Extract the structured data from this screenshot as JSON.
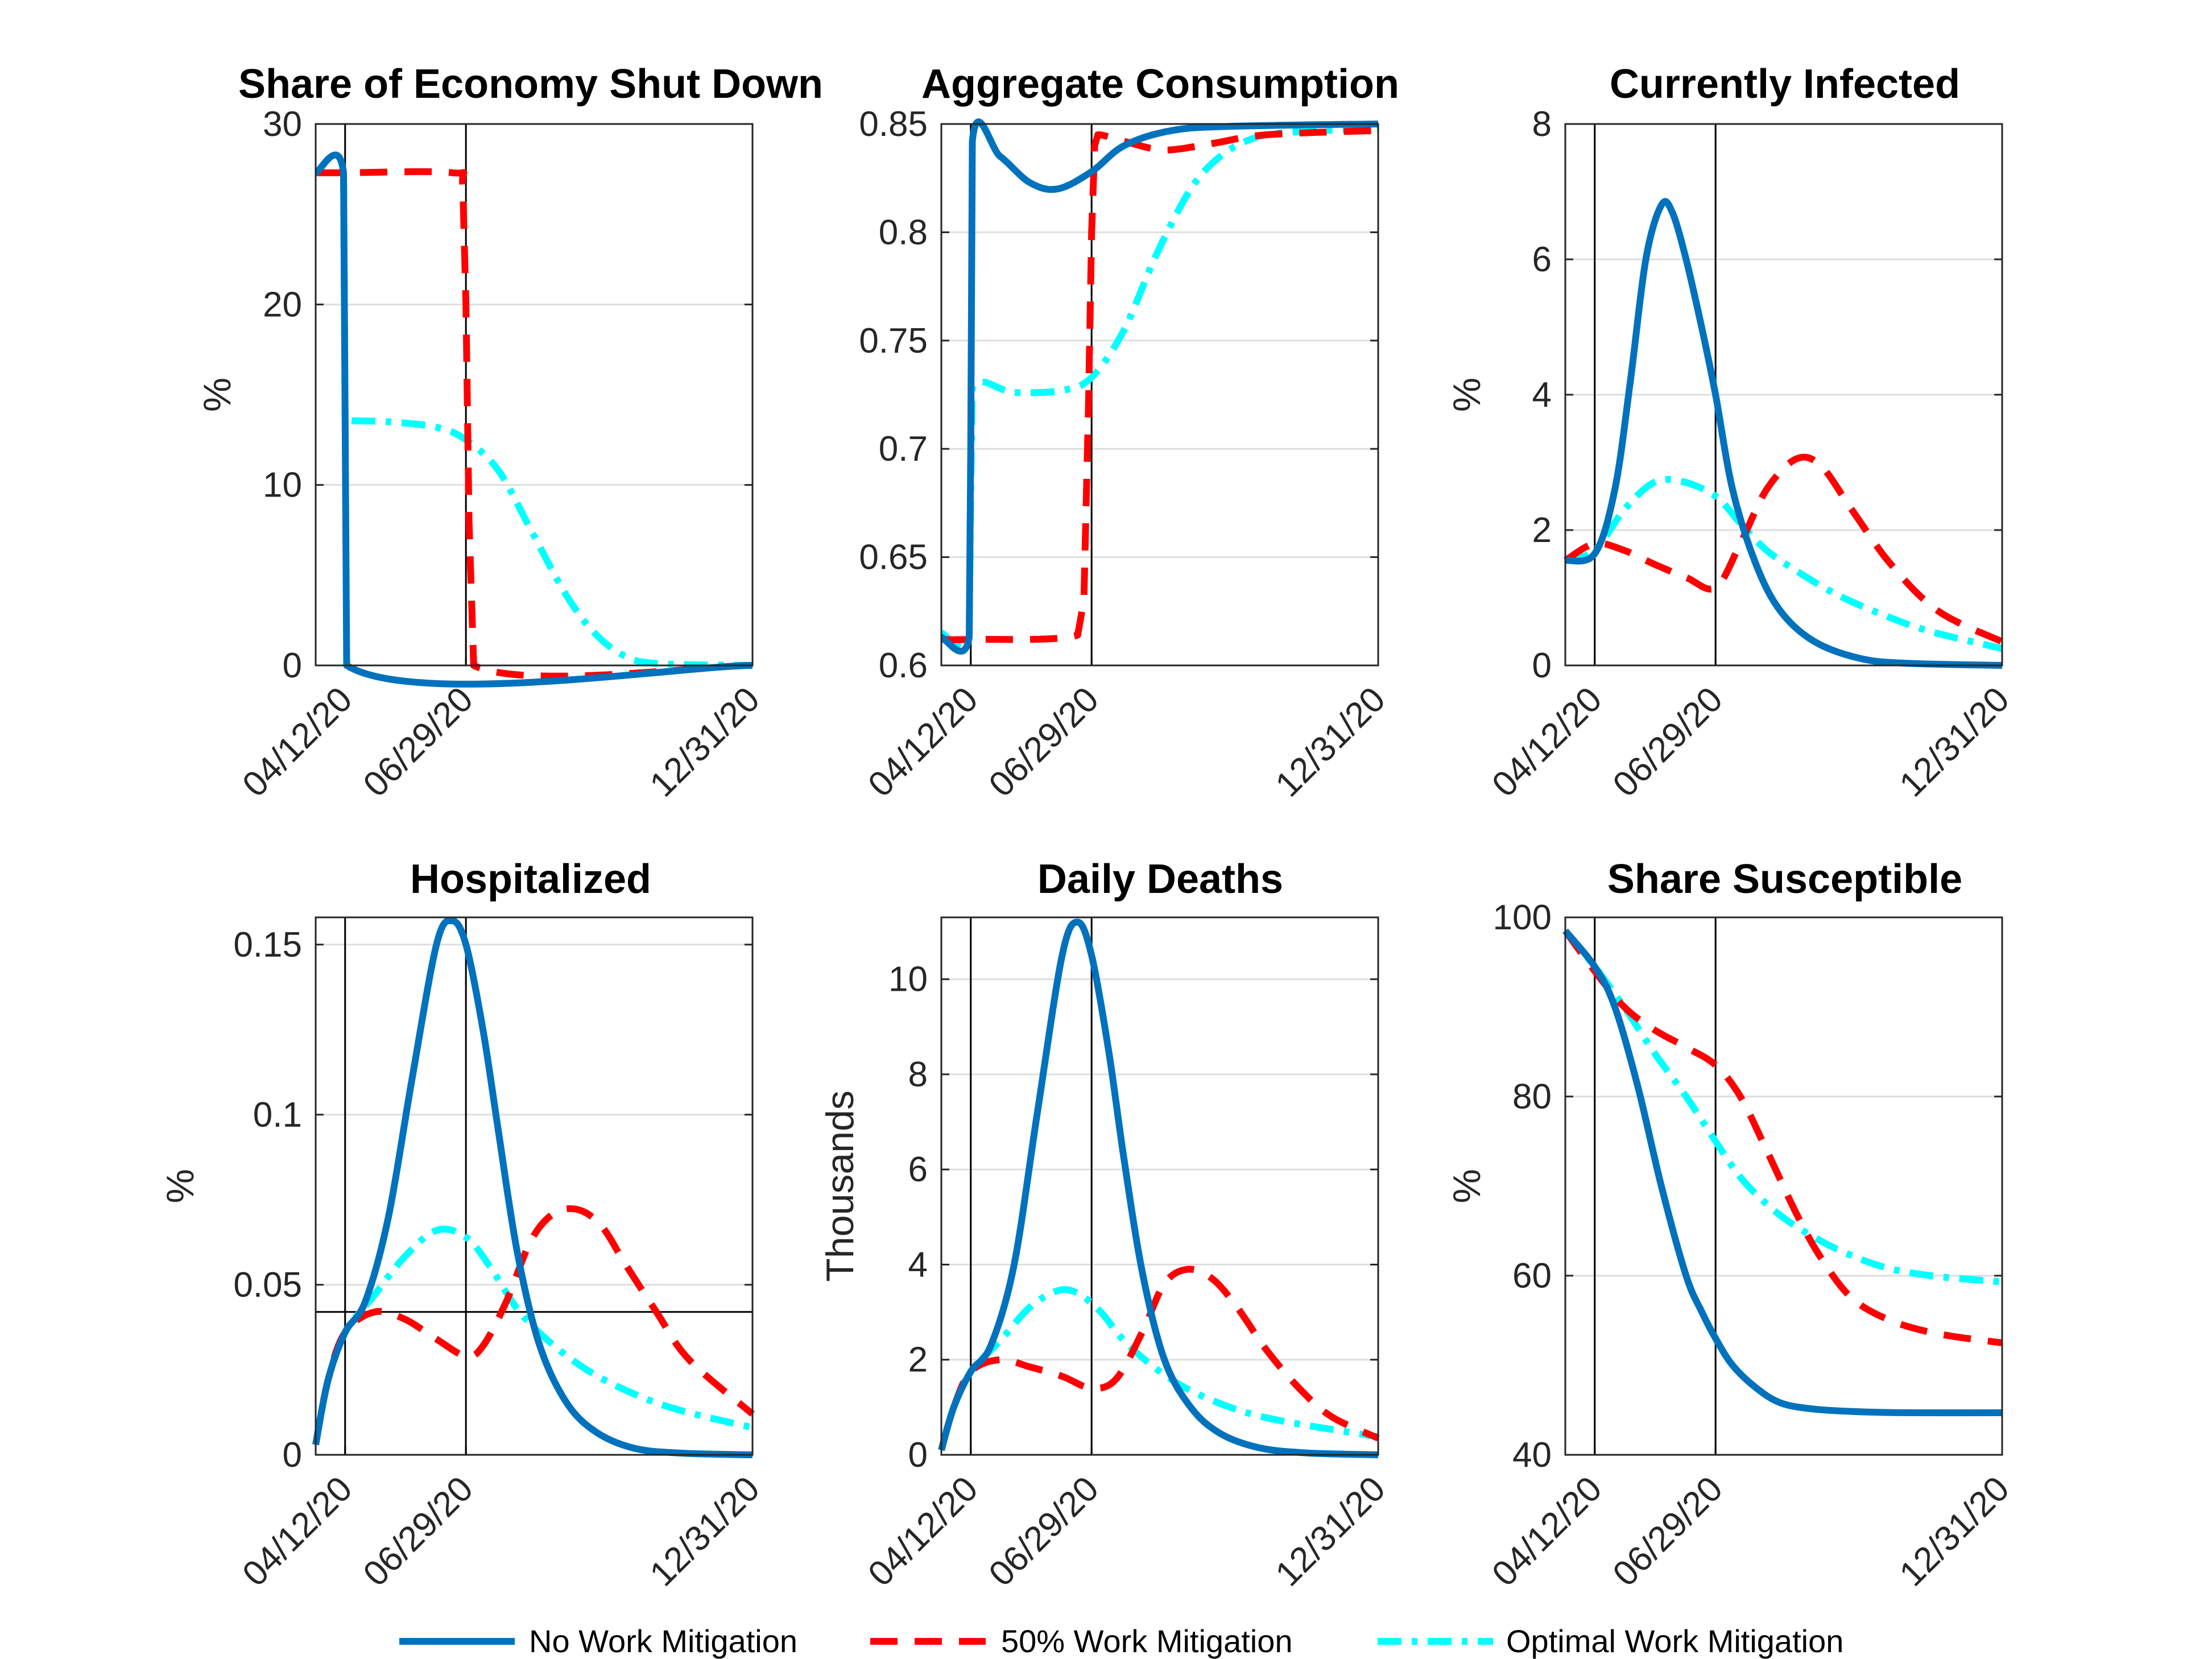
{
  "colors": {
    "no": "#0072BD",
    "half": "#FF0000",
    "opt": "#00FFFF",
    "grid": "#dedede",
    "axis": "#262626",
    "vline": "#000000"
  },
  "legend": {
    "items": [
      {
        "label": "No Work Mitigation",
        "color": "#0072BD",
        "style": "solid"
      },
      {
        "label": "50% Work Mitigation",
        "color": "#FF0000",
        "style": "dashed"
      },
      {
        "label": "Optimal Work Mitigation",
        "color": "#00FFFF",
        "style": "dashdot"
      }
    ]
  },
  "chart_data": [
    {
      "type": "line",
      "title": "Share of Economy Shut Down",
      "ylabel": "%",
      "xlim": [
        "2020-03-24",
        "2020-12-31"
      ],
      "xticks": [
        "2020-04-12",
        "2020-06-29",
        "2020-12-31"
      ],
      "xtick_labels": [
        "04/12/20",
        "06/29/20",
        "12/31/20"
      ],
      "ylim": [
        0,
        30
      ],
      "yticks": [
        0,
        10,
        20,
        30
      ],
      "ytick_labels": [
        "0",
        "10",
        "20",
        "30"
      ],
      "vlines": [
        "2020-04-12",
        "2020-06-29"
      ],
      "series": [
        {
          "name": "No Work Mitigation",
          "key": "no",
          "x": [
            "2020-03-24",
            "2020-04-11",
            "2020-04-12",
            "2020-04-13",
            "2020-12-31"
          ],
          "y": [
            27.3,
            27.3,
            14,
            0,
            0
          ]
        },
        {
          "name": "50% Work Mitigation",
          "key": "half",
          "x": [
            "2020-03-24",
            "2020-04-12",
            "2020-06-20",
            "2020-06-27",
            "2020-06-29",
            "2020-07-01",
            "2020-07-04",
            "2020-12-31"
          ],
          "y": [
            27.3,
            27.3,
            27.3,
            26.5,
            20,
            8,
            0,
            0
          ]
        },
        {
          "name": "Optimal Work Mitigation",
          "key": "opt",
          "x": [
            "2020-03-24",
            "2020-04-11",
            "2020-04-12",
            "2020-04-13",
            "2020-05-10",
            "2020-06-10",
            "2020-06-29",
            "2020-07-20",
            "2020-08-10",
            "2020-09-01",
            "2020-09-20",
            "2020-10-10",
            "2020-11-01",
            "2020-12-31"
          ],
          "y": [
            27.3,
            27.3,
            14,
            13.6,
            13.5,
            13.2,
            12.5,
            10.8,
            7.5,
            4,
            1.8,
            0.5,
            0.1,
            0
          ]
        }
      ]
    },
    {
      "type": "line",
      "title": "Aggregate Consumption",
      "ylabel": "",
      "xlim": [
        "2020-03-24",
        "2020-12-31"
      ],
      "xticks": [
        "2020-04-12",
        "2020-06-29",
        "2020-12-31"
      ],
      "xtick_labels": [
        "04/12/20",
        "06/29/20",
        "12/31/20"
      ],
      "ylim": [
        0.6,
        0.85
      ],
      "yticks": [
        0.6,
        0.65,
        0.7,
        0.75,
        0.8,
        0.85
      ],
      "ytick_labels": [
        "0.6",
        "0.65",
        "0.7",
        "0.75",
        "0.8",
        "0.85"
      ],
      "vlines": [
        "2020-04-12",
        "2020-06-29"
      ],
      "series": [
        {
          "name": "No Work Mitigation",
          "key": "no",
          "x": [
            "2020-03-24",
            "2020-04-11",
            "2020-04-12",
            "2020-04-13",
            "2020-05-01",
            "2020-05-20",
            "2020-06-07",
            "2020-06-29",
            "2020-07-20",
            "2020-08-20",
            "2020-10-01",
            "2020-12-31"
          ],
          "y": [
            0.613,
            0.613,
            0.7,
            0.842,
            0.835,
            0.823,
            0.82,
            0.828,
            0.84,
            0.847,
            0.849,
            0.85
          ]
        },
        {
          "name": "50% Work Mitigation",
          "key": "half",
          "x": [
            "2020-03-24",
            "2020-04-12",
            "2020-06-20",
            "2020-06-24",
            "2020-06-27",
            "2020-06-29",
            "2020-07-01",
            "2020-07-03",
            "2020-07-20",
            "2020-08-15",
            "2020-09-15",
            "2020-10-20",
            "2020-12-31"
          ],
          "y": [
            0.612,
            0.612,
            0.614,
            0.63,
            0.72,
            0.8,
            0.84,
            0.845,
            0.842,
            0.838,
            0.841,
            0.845,
            0.847
          ]
        },
        {
          "name": "Optimal Work Mitigation",
          "key": "opt",
          "x": [
            "2020-03-24",
            "2020-04-11",
            "2020-04-12",
            "2020-04-13",
            "2020-05-10",
            "2020-06-10",
            "2020-06-29",
            "2020-07-20",
            "2020-08-10",
            "2020-09-01",
            "2020-09-20",
            "2020-10-10",
            "2020-11-01",
            "2020-12-31"
          ],
          "y": [
            0.615,
            0.613,
            0.68,
            0.728,
            0.726,
            0.727,
            0.733,
            0.755,
            0.79,
            0.82,
            0.835,
            0.843,
            0.846,
            0.848
          ]
        }
      ]
    },
    {
      "type": "line",
      "title": "Currently Infected",
      "ylabel": "%",
      "xlim": [
        "2020-03-24",
        "2020-12-31"
      ],
      "xticks": [
        "2020-04-12",
        "2020-06-29",
        "2020-12-31"
      ],
      "xtick_labels": [
        "04/12/20",
        "06/29/20",
        "12/31/20"
      ],
      "ylim": [
        0,
        8
      ],
      "yticks": [
        0,
        2,
        4,
        6,
        8
      ],
      "ytick_labels": [
        "0",
        "2",
        "4",
        "6",
        "8"
      ],
      "vlines": [
        "2020-04-12",
        "2020-06-29"
      ],
      "series": [
        {
          "name": "No Work Mitigation",
          "key": "no",
          "x": [
            "2020-03-24",
            "2020-04-12",
            "2020-04-25",
            "2020-05-05",
            "2020-05-15",
            "2020-05-25",
            "2020-06-01",
            "2020-06-10",
            "2020-06-20",
            "2020-06-29",
            "2020-07-10",
            "2020-07-25",
            "2020-08-10",
            "2020-09-01",
            "2020-10-01",
            "2020-11-01",
            "2020-12-31"
          ],
          "y": [
            1.55,
            1.65,
            2.6,
            4.2,
            6.0,
            6.8,
            6.7,
            6.0,
            5.0,
            4.0,
            2.6,
            1.5,
            0.8,
            0.35,
            0.1,
            0.03,
            0
          ]
        },
        {
          "name": "50% Work Mitigation",
          "key": "half",
          "x": [
            "2020-03-24",
            "2020-04-12",
            "2020-05-01",
            "2020-05-20",
            "2020-06-10",
            "2020-06-29",
            "2020-07-15",
            "2020-08-01",
            "2020-08-20",
            "2020-09-05",
            "2020-09-25",
            "2020-10-20",
            "2020-11-20",
            "2020-12-31"
          ],
          "y": [
            1.55,
            1.8,
            1.7,
            1.5,
            1.3,
            1.15,
            1.8,
            2.6,
            3.05,
            2.95,
            2.3,
            1.5,
            0.8,
            0.35
          ]
        },
        {
          "name": "Optimal Work Mitigation",
          "key": "opt",
          "x": [
            "2020-03-24",
            "2020-04-12",
            "2020-05-01",
            "2020-05-20",
            "2020-06-07",
            "2020-06-29",
            "2020-07-15",
            "2020-08-01",
            "2020-08-20",
            "2020-09-15",
            "2020-10-15",
            "2020-11-15",
            "2020-12-31"
          ],
          "y": [
            1.55,
            1.7,
            2.3,
            2.7,
            2.72,
            2.5,
            2.1,
            1.7,
            1.4,
            1.05,
            0.75,
            0.5,
            0.25
          ]
        }
      ]
    },
    {
      "type": "line",
      "title": "Hospitalized",
      "ylabel": "%",
      "xlim": [
        "2020-03-24",
        "2020-12-31"
      ],
      "xticks": [
        "2020-04-12",
        "2020-06-29",
        "2020-12-31"
      ],
      "xtick_labels": [
        "04/12/20",
        "06/29/20",
        "12/31/20"
      ],
      "ylim": [
        0,
        0.158
      ],
      "yticks": [
        0,
        0.05,
        0.1,
        0.15
      ],
      "ytick_labels": [
        "0",
        "0.05",
        "0.1",
        "0.15"
      ],
      "vlines": [
        "2020-04-12",
        "2020-06-29"
      ],
      "hline": 0.042,
      "series": [
        {
          "name": "No Work Mitigation",
          "key": "no",
          "x": [
            "2020-03-24",
            "2020-04-01",
            "2020-04-12",
            "2020-04-25",
            "2020-05-10",
            "2020-05-25",
            "2020-06-10",
            "2020-06-20",
            "2020-06-29",
            "2020-07-10",
            "2020-07-20",
            "2020-08-01",
            "2020-08-15",
            "2020-09-01",
            "2020-09-20",
            "2020-10-15",
            "2020-11-15",
            "2020-12-31"
          ],
          "y": [
            0.003,
            0.022,
            0.036,
            0.045,
            0.07,
            0.11,
            0.15,
            0.157,
            0.15,
            0.125,
            0.095,
            0.06,
            0.033,
            0.016,
            0.007,
            0.002,
            0.0005,
            0
          ]
        },
        {
          "name": "50% Work Mitigation",
          "key": "half",
          "x": [
            "2020-03-24",
            "2020-04-01",
            "2020-04-12",
            "2020-05-01",
            "2020-05-20",
            "2020-06-10",
            "2020-06-29",
            "2020-07-10",
            "2020-07-25",
            "2020-08-10",
            "2020-08-25",
            "2020-09-10",
            "2020-09-25",
            "2020-10-10",
            "2020-10-30",
            "2020-11-20",
            "2020-12-31"
          ],
          "y": [
            0.003,
            0.022,
            0.036,
            0.042,
            0.04,
            0.034,
            0.029,
            0.032,
            0.045,
            0.063,
            0.071,
            0.072,
            0.067,
            0.056,
            0.042,
            0.028,
            0.012
          ]
        },
        {
          "name": "Optimal Work Mitigation",
          "key": "opt",
          "x": [
            "2020-03-24",
            "2020-04-01",
            "2020-04-12",
            "2020-05-01",
            "2020-05-20",
            "2020-06-10",
            "2020-06-29",
            "2020-07-15",
            "2020-08-01",
            "2020-08-20",
            "2020-09-15",
            "2020-10-15",
            "2020-11-15",
            "2020-12-31"
          ],
          "y": [
            0.003,
            0.022,
            0.036,
            0.047,
            0.058,
            0.066,
            0.064,
            0.055,
            0.043,
            0.034,
            0.025,
            0.018,
            0.013,
            0.008
          ]
        }
      ]
    },
    {
      "type": "line",
      "title": "Daily Deaths",
      "ylabel": "Thousands",
      "xlim": [
        "2020-03-24",
        "2020-12-31"
      ],
      "xticks": [
        "2020-04-12",
        "2020-06-29",
        "2020-12-31"
      ],
      "xtick_labels": [
        "04/12/20",
        "06/29/20",
        "12/31/20"
      ],
      "ylim": [
        0,
        11.3
      ],
      "yticks": [
        0,
        2,
        4,
        6,
        8,
        10
      ],
      "ytick_labels": [
        "0",
        "2",
        "4",
        "6",
        "8",
        "10"
      ],
      "vlines": [
        "2020-04-12",
        "2020-06-29"
      ],
      "series": [
        {
          "name": "No Work Mitigation",
          "key": "no",
          "x": [
            "2020-03-24",
            "2020-04-01",
            "2020-04-12",
            "2020-04-25",
            "2020-05-10",
            "2020-05-25",
            "2020-06-10",
            "2020-06-20",
            "2020-06-29",
            "2020-07-10",
            "2020-07-20",
            "2020-08-01",
            "2020-08-15",
            "2020-09-01",
            "2020-09-20",
            "2020-10-15",
            "2020-11-15",
            "2020-12-31"
          ],
          "y": [
            0.1,
            1.0,
            1.75,
            2.3,
            4.0,
            7.2,
            10.5,
            11.2,
            10.5,
            8.5,
            6.2,
            3.8,
            2.0,
            1.0,
            0.45,
            0.15,
            0.04,
            0
          ]
        },
        {
          "name": "50% Work Mitigation",
          "key": "half",
          "x": [
            "2020-03-24",
            "2020-04-01",
            "2020-04-12",
            "2020-05-01",
            "2020-05-20",
            "2020-06-10",
            "2020-06-29",
            "2020-07-15",
            "2020-08-01",
            "2020-08-15",
            "2020-08-30",
            "2020-09-15",
            "2020-10-01",
            "2020-10-20",
            "2020-11-10",
            "2020-12-01",
            "2020-12-31"
          ],
          "y": [
            0.1,
            1.0,
            1.75,
            2.0,
            1.85,
            1.65,
            1.4,
            1.6,
            2.6,
            3.6,
            3.9,
            3.7,
            3.1,
            2.2,
            1.4,
            0.8,
            0.35
          ]
        },
        {
          "name": "Optimal Work Mitigation",
          "key": "opt",
          "x": [
            "2020-03-24",
            "2020-04-01",
            "2020-04-12",
            "2020-05-01",
            "2020-05-20",
            "2020-06-07",
            "2020-06-20",
            "2020-07-05",
            "2020-07-20",
            "2020-08-10",
            "2020-09-01",
            "2020-10-01",
            "2020-11-01",
            "2020-12-31"
          ],
          "y": [
            0.1,
            1.0,
            1.75,
            2.4,
            3.1,
            3.45,
            3.4,
            3.0,
            2.4,
            1.8,
            1.35,
            0.95,
            0.7,
            0.38
          ]
        }
      ]
    },
    {
      "type": "line",
      "title": "Share Susceptible",
      "ylabel": "%",
      "xlim": [
        "2020-03-24",
        "2020-12-31"
      ],
      "xticks": [
        "2020-04-12",
        "2020-06-29",
        "2020-12-31"
      ],
      "xtick_labels": [
        "04/12/20",
        "06/29/20",
        "12/31/20"
      ],
      "ylim": [
        40,
        100
      ],
      "yticks": [
        40,
        60,
        80,
        100
      ],
      "ytick_labels": [
        "40",
        "60",
        "80",
        "100"
      ],
      "vlines": [
        "2020-04-12",
        "2020-06-29"
      ],
      "series": [
        {
          "name": "No Work Mitigation",
          "key": "no",
          "x": [
            "2020-03-24",
            "2020-04-12",
            "2020-04-25",
            "2020-05-10",
            "2020-05-25",
            "2020-06-10",
            "2020-06-20",
            "2020-06-29",
            "2020-07-10",
            "2020-07-25",
            "2020-08-10",
            "2020-09-01",
            "2020-10-01",
            "2020-11-01",
            "2020-12-31"
          ],
          "y": [
            98.5,
            94.5,
            90,
            81,
            70,
            60,
            56,
            53,
            50,
            47.5,
            45.8,
            45.1,
            44.8,
            44.7,
            44.7
          ]
        },
        {
          "name": "50% Work Mitigation",
          "key": "half",
          "x": [
            "2020-03-24",
            "2020-04-12",
            "2020-05-01",
            "2020-05-20",
            "2020-06-10",
            "2020-06-29",
            "2020-07-15",
            "2020-08-01",
            "2020-08-20",
            "2020-09-05",
            "2020-09-25",
            "2020-10-20",
            "2020-11-20",
            "2020-12-31"
          ],
          "y": [
            98.5,
            94,
            90,
            87.5,
            85.5,
            83.5,
            80,
            74,
            67,
            62,
            57.5,
            55,
            53.5,
            52.5
          ]
        },
        {
          "name": "Optimal Work Mitigation",
          "key": "opt",
          "x": [
            "2020-03-24",
            "2020-04-12",
            "2020-05-01",
            "2020-05-20",
            "2020-06-10",
            "2020-06-29",
            "2020-07-15",
            "2020-08-01",
            "2020-08-20",
            "2020-09-15",
            "2020-10-15",
            "2020-11-15",
            "2020-12-31"
          ],
          "y": [
            98.5,
            94.5,
            90,
            85,
            80,
            75,
            71,
            68,
            65.5,
            63,
            61,
            60,
            59.3
          ]
        }
      ]
    }
  ]
}
